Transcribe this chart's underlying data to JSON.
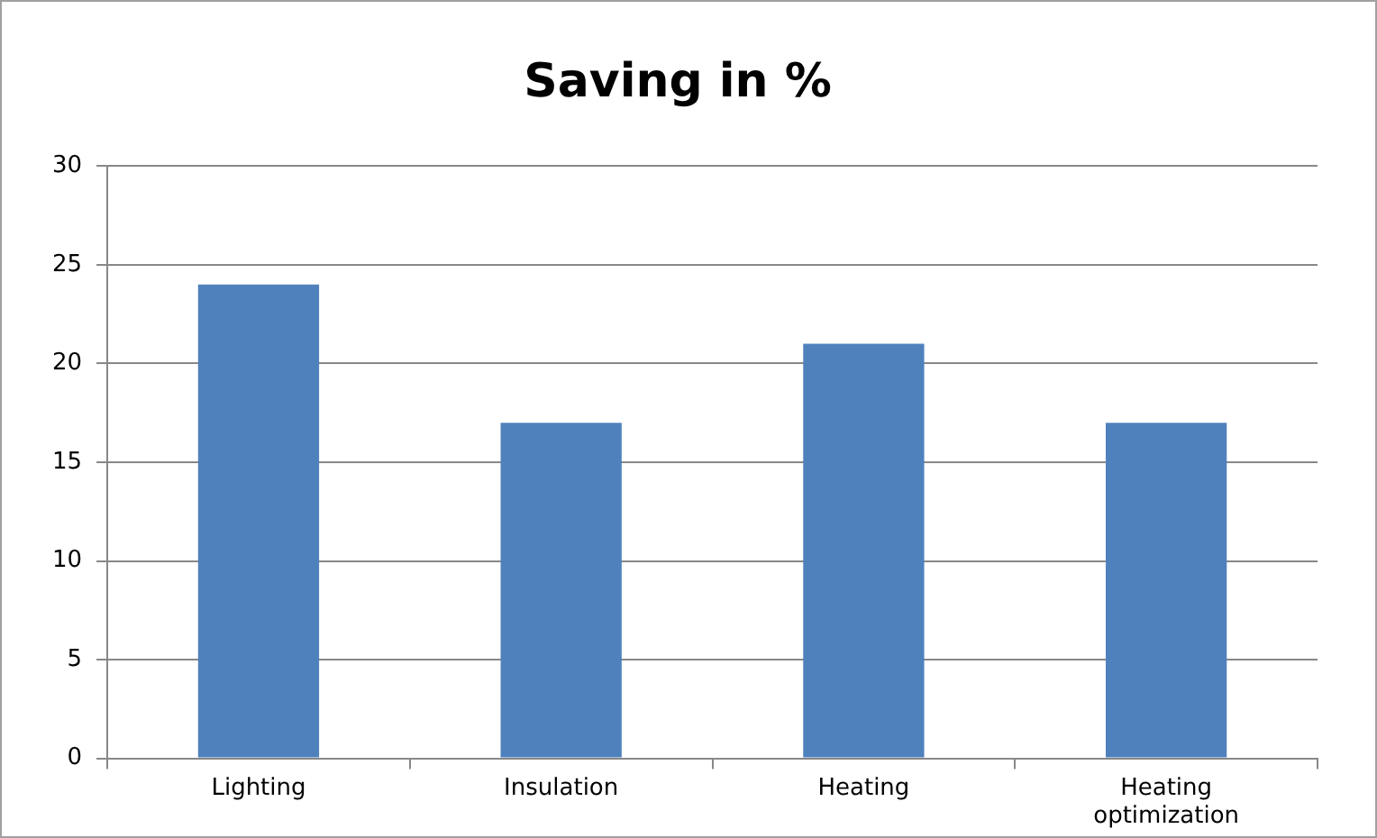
{
  "chart_data": {
    "type": "bar",
    "title": "Saving in %",
    "categories": [
      "Lighting",
      "Insulation",
      "Heating",
      "Heating optimization"
    ],
    "values": [
      24,
      17,
      21,
      17
    ],
    "color": "#4f81bd",
    "ylim": [
      0,
      30
    ],
    "yticks": [
      0,
      5,
      10,
      15,
      20,
      25,
      30
    ],
    "grid": "y",
    "legend": false
  }
}
